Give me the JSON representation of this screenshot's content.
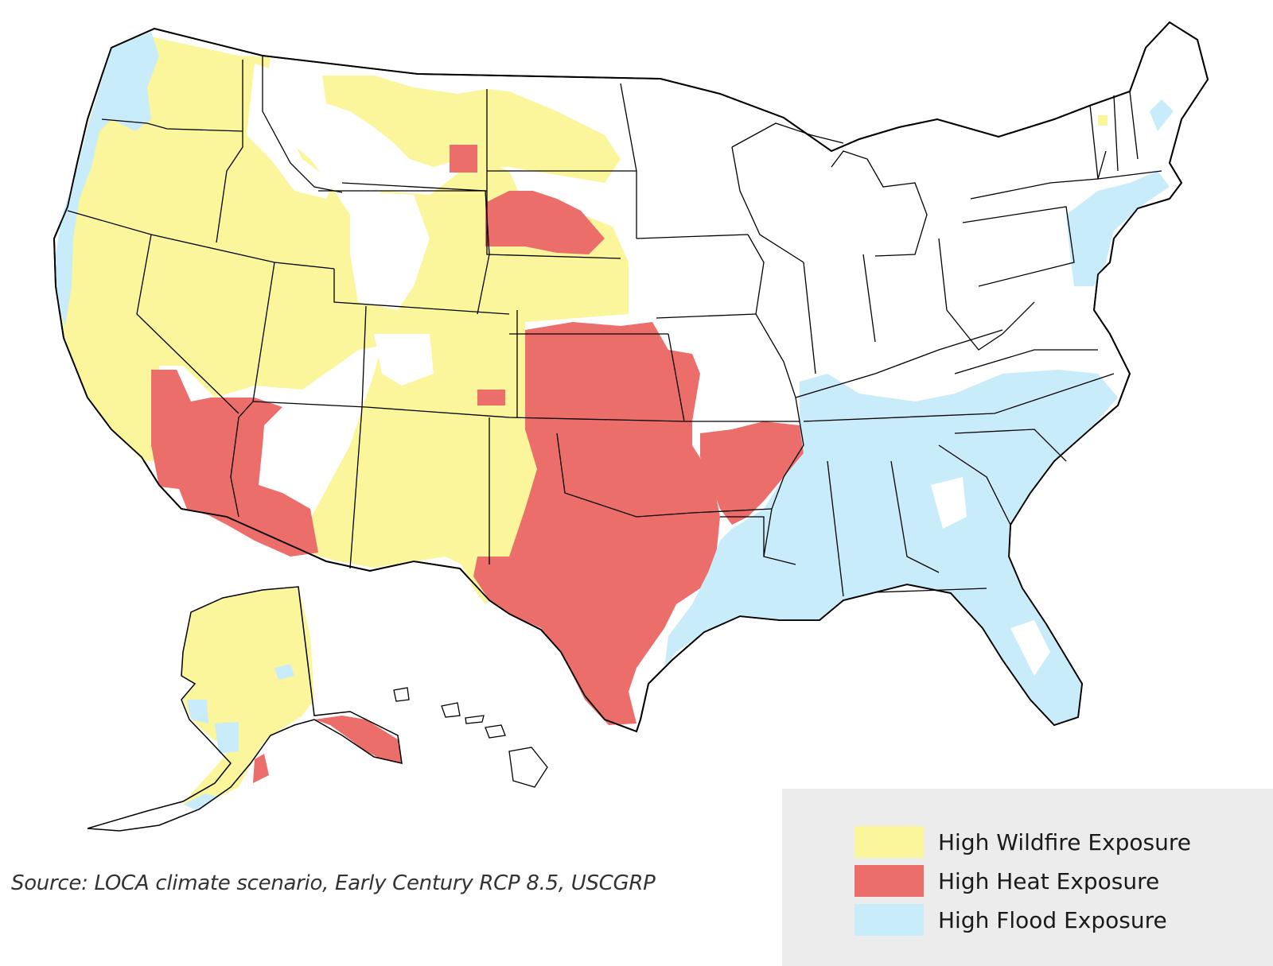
{
  "map": {
    "colors": {
      "wildfire": "#fbf59b",
      "heat": "#ec6e6a",
      "flood": "#c9ecfa",
      "land": "#ffffff",
      "border": "#000000"
    }
  },
  "legend": {
    "items": [
      {
        "label": "High Wildfire Exposure",
        "color": "#fbf59b"
      },
      {
        "label": "High Heat Exposure",
        "color": "#ec6e6a"
      },
      {
        "label": "High Flood Exposure",
        "color": "#c9ecfa"
      }
    ]
  },
  "source": {
    "text": "Source: LOCA climate scenario, Early Century RCP 8.5, USCGRP"
  }
}
